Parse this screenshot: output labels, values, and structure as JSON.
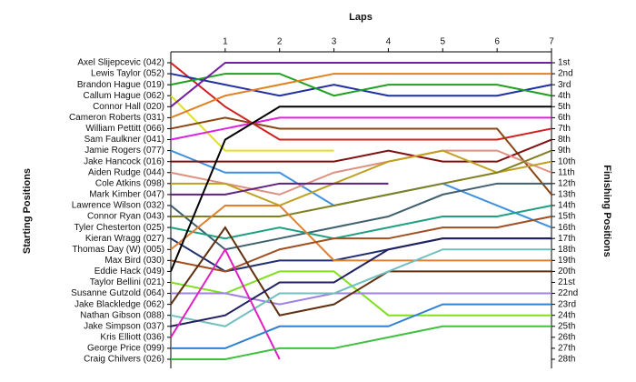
{
  "chart_data": {
    "type": "line",
    "title": "Laps",
    "y_label": "Starting Positions",
    "y2_label": "Finishing Positions",
    "x": [
      0,
      1,
      2,
      3,
      4,
      5,
      6,
      7
    ],
    "xlim": [
      0,
      7
    ],
    "xticks": [
      1,
      2,
      3,
      4,
      5,
      6,
      7
    ],
    "ylim": [
      1,
      28
    ],
    "finish_labels": [
      "1st",
      "2nd",
      "3rd",
      "4th",
      "5th",
      "6th",
      "7th",
      "8th",
      "9th",
      "10th",
      "11th",
      "12th",
      "13th",
      "14th",
      "15th",
      "16th",
      "17th",
      "18th",
      "19th",
      "20th",
      "21st",
      "22nd",
      "23rd",
      "24th",
      "25th",
      "26th",
      "27th",
      "28th"
    ],
    "series": [
      {
        "name": "Axel Slijepcevic (042)",
        "color": "#d02020",
        "values": [
          1,
          5,
          8,
          8,
          8,
          8,
          8,
          7
        ]
      },
      {
        "name": "Lewis Taylor (052)",
        "color": "#2030a0",
        "values": [
          2,
          3,
          4,
          3,
          4,
          4,
          4,
          3
        ]
      },
      {
        "name": "Brandon Hague (019)",
        "color": "#20a020",
        "values": [
          3,
          2,
          2,
          4,
          3,
          3,
          3,
          4
        ]
      },
      {
        "name": "Callum Hague (062)",
        "color": "#e0e020",
        "values": [
          4,
          9,
          9,
          9,
          null,
          null,
          null,
          null
        ]
      },
      {
        "name": "Connor Hall (020)",
        "color": "#7020a0",
        "values": [
          5,
          1,
          1,
          1,
          1,
          1,
          1,
          1
        ]
      },
      {
        "name": "Cameron Roberts (031)",
        "color": "#e08020",
        "values": [
          6,
          4,
          3,
          2,
          2,
          2,
          2,
          2
        ]
      },
      {
        "name": "William Pettitt (066)",
        "color": "#8b4513",
        "values": [
          7,
          6,
          7,
          7,
          7,
          7,
          7,
          13
        ]
      },
      {
        "name": "Sam Faulkner (041)",
        "color": "#e020e0",
        "values": [
          8,
          7,
          6,
          6,
          6,
          6,
          6,
          6
        ]
      },
      {
        "name": "Jamie Rogers (077)",
        "color": "#4090e0",
        "values": [
          9,
          11,
          11,
          14,
          13,
          12,
          14,
          16
        ]
      },
      {
        "name": "Jake Hancock (016)",
        "color": "#801010",
        "values": [
          10,
          10,
          10,
          10,
          9,
          10,
          10,
          8
        ]
      },
      {
        "name": "Aiden Rudge (044)",
        "color": "#e09080",
        "values": [
          11,
          12,
          13,
          11,
          10,
          9,
          9,
          11
        ]
      },
      {
        "name": "Cole Atkins (098)",
        "color": "#c0a020",
        "values": [
          12,
          12,
          14,
          12,
          10,
          9,
          11,
          10
        ]
      },
      {
        "name": "Mark Kimber (047)",
        "color": "#602080",
        "values": [
          13,
          13,
          12,
          12,
          12,
          null,
          null,
          null
        ]
      },
      {
        "name": "Lawrence Wilson (032)",
        "color": "#406070",
        "values": [
          14,
          18,
          17,
          16,
          15,
          13,
          12,
          12
        ]
      },
      {
        "name": "Connor Ryan (043)",
        "color": "#808020",
        "values": [
          15,
          15,
          15,
          14,
          13,
          12,
          11,
          9
        ]
      },
      {
        "name": "Tyler Chesterton (025)",
        "color": "#20a080",
        "values": [
          16,
          17,
          16,
          17,
          16,
          15,
          15,
          14
        ]
      },
      {
        "name": "Kieran Wragg (027)",
        "color": "#203070",
        "values": [
          17,
          20,
          19,
          19,
          18,
          17,
          17,
          17
        ]
      },
      {
        "name": "Thomas Day (W) (005)",
        "color": "#e08030",
        "values": [
          18,
          14,
          14,
          19,
          19,
          19,
          19,
          19
        ]
      },
      {
        "name": "Max Bird (030)",
        "color": "#a05020",
        "values": [
          19,
          20,
          18,
          17,
          17,
          16,
          16,
          15
        ]
      },
      {
        "name": "Eddie Hack (049)",
        "color": "#000000",
        "values": [
          20,
          8,
          5,
          5,
          5,
          5,
          5,
          5
        ]
      },
      {
        "name": "Taylor Bellini (021)",
        "color": "#80e020",
        "values": [
          21,
          22,
          20,
          20,
          24,
          24,
          24,
          24
        ]
      },
      {
        "name": "Susanne Gutzold (064)",
        "color": "#a080e0",
        "values": [
          22,
          22,
          23,
          22,
          22,
          22,
          22,
          22
        ]
      },
      {
        "name": "Jake Blackledge (062)",
        "color": "#603010",
        "values": [
          23,
          16,
          24,
          23,
          20,
          20,
          20,
          20
        ]
      },
      {
        "name": "Nathan Gibson (088)",
        "color": "#70c0c0",
        "values": [
          24,
          25,
          22,
          22,
          20,
          18,
          18,
          18
        ]
      },
      {
        "name": "Jake Simpson (037)",
        "color": "#202060",
        "values": [
          25,
          24,
          21,
          21,
          18,
          17,
          17,
          17
        ]
      },
      {
        "name": "Kris Elliott (036)",
        "color": "#e020c0",
        "values": [
          26,
          18,
          28,
          null,
          null,
          null,
          null,
          null
        ]
      },
      {
        "name": "George Price (099)",
        "color": "#3080d0",
        "values": [
          27,
          27,
          25,
          25,
          25,
          23,
          23,
          23
        ]
      },
      {
        "name": "Craig Chilvers (026)",
        "color": "#40c040",
        "values": [
          28,
          28,
          27,
          27,
          26,
          25,
          25,
          25
        ]
      }
    ]
  }
}
